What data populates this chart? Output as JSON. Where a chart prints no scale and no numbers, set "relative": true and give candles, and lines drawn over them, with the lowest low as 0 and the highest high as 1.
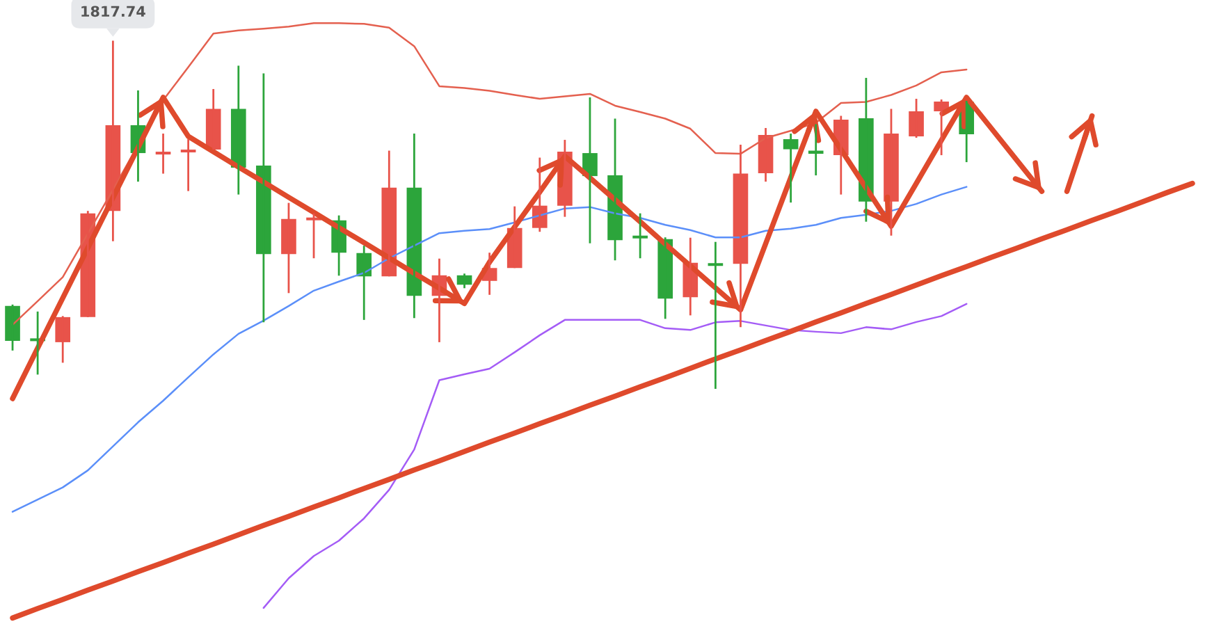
{
  "chart_data": {
    "type": "candlestick",
    "relative": true,
    "categories": [
      null,
      null,
      null,
      null,
      null,
      null,
      null,
      null,
      null,
      null,
      null,
      null,
      null,
      null,
      null,
      null,
      null,
      null,
      null,
      null,
      null,
      null,
      null,
      null,
      null,
      null,
      null,
      null,
      null,
      null,
      null,
      null,
      null,
      null,
      null,
      null,
      null,
      null,
      null,
      null,
      null,
      null,
      null,
      null,
      null,
      null,
      null,
      null
    ],
    "ohlc": [
      [
        0.238,
        0.242,
        0.11,
        0.138
      ],
      [
        0.144,
        0.222,
        0.041,
        0.138
      ],
      [
        0.134,
        0.209,
        0.075,
        0.206
      ],
      [
        0.206,
        0.511,
        0.206,
        0.504
      ],
      [
        0.511,
        1.0,
        0.424,
        0.757
      ],
      [
        0.757,
        0.857,
        0.595,
        0.677
      ],
      [
        0.675,
        0.733,
        0.618,
        0.679
      ],
      [
        0.679,
        0.717,
        0.568,
        0.687
      ],
      [
        0.687,
        0.861,
        0.687,
        0.804
      ],
      [
        0.804,
        0.928,
        0.558,
        0.635
      ],
      [
        0.641,
        0.906,
        0.191,
        0.387
      ],
      [
        0.387,
        0.534,
        0.275,
        0.488
      ],
      [
        0.486,
        0.504,
        0.375,
        0.49
      ],
      [
        0.484,
        0.498,
        0.325,
        0.391
      ],
      [
        0.39,
        0.411,
        0.198,
        0.323
      ],
      [
        0.323,
        0.684,
        0.323,
        0.578
      ],
      [
        0.578,
        0.733,
        0.203,
        0.267
      ],
      [
        0.267,
        0.374,
        0.134,
        0.326
      ],
      [
        0.326,
        0.331,
        0.289,
        0.299
      ],
      [
        0.31,
        0.391,
        0.27,
        0.347
      ],
      [
        0.347,
        0.524,
        0.347,
        0.462
      ],
      [
        0.462,
        0.664,
        0.451,
        0.526
      ],
      [
        0.526,
        0.715,
        0.494,
        0.681
      ],
      [
        0.677,
        0.837,
        0.418,
        0.611
      ],
      [
        0.613,
        0.776,
        0.369,
        0.427
      ],
      [
        0.44,
        0.504,
        0.375,
        0.432
      ],
      [
        0.43,
        0.435,
        0.201,
        0.259
      ],
      [
        0.263,
        0.434,
        0.211,
        0.362
      ],
      [
        0.361,
        0.422,
        0,
        0.353
      ],
      [
        0.359,
        0.701,
        0.177,
        0.618
      ],
      [
        0.619,
        0.749,
        0.595,
        0.729
      ],
      [
        0.717,
        0.733,
        0.535,
        0.688
      ],
      [
        0.684,
        0.76,
        0.613,
        0.675
      ],
      [
        0.671,
        0.784,
        0.558,
        0.773
      ],
      [
        0.777,
        0.893,
        0.48,
        0.538
      ],
      [
        0.538,
        0.804,
        0.44,
        0.733
      ],
      [
        0.725,
        0.833,
        0.721,
        0.797
      ],
      [
        0.797,
        0.831,
        0.671,
        0.825
      ],
      [
        0.824,
        0.827,
        0.651,
        0.731
      ],
      null,
      null,
      null,
      null,
      null,
      null,
      null,
      null,
      null
    ],
    "colors": [
      "#2ca53b",
      "#2ca53b",
      "#e8534a",
      "#e8534a",
      "#e8534a",
      "#2ca53b",
      "#e8534a",
      "#e8534a",
      "#e8534a",
      "#2ca53b",
      "#2ca53b",
      "#e8534a",
      "#e8534a",
      "#2ca53b",
      "#2ca53b",
      "#e8534a",
      "#2ca53b",
      "#e8534a",
      "#2ca53b",
      "#e8534a",
      "#e8534a",
      "#e8534a",
      "#e8534a",
      "#2ca53b",
      "#2ca53b",
      "#2ca53b",
      "#2ca53b",
      "#e8534a",
      "#2ca53b",
      "#e8534a",
      "#e8534a",
      "#2ca53b",
      "#2ca53b",
      "#e8534a",
      "#2ca53b",
      "#e8534a",
      "#e8534a",
      "#e8534a",
      "#2ca53b",
      null,
      null,
      null,
      null,
      null,
      null,
      null,
      null,
      null
    ],
    "series": [
      {
        "type": "line",
        "color": "#e4604f",
        "values": [
          0.184,
          0.252,
          0.321,
          0.446,
          0.572,
          0.7,
          0.829,
          0.924,
          1.02,
          1.029,
          1.034,
          1.04,
          1.05,
          1.05,
          1.048,
          1.037,
          0.984,
          0.869,
          0.864,
          0.856,
          0.844,
          0.833,
          0.84,
          0.847,
          0.813,
          0.795,
          0.776,
          0.747,
          0.677,
          0.675,
          0.72,
          0.741,
          0.764,
          0.821,
          0.824,
          0.844,
          0.871,
          0.909,
          0.917,
          null,
          null,
          null,
          null,
          null,
          null,
          null,
          null,
          null
        ]
      },
      {
        "type": "line",
        "color": "#5b8ff9",
        "values": [
          -0.353,
          -0.318,
          -0.283,
          -0.234,
          -0.165,
          -0.096,
          -0.034,
          0.033,
          0.099,
          0.158,
          0.196,
          0.238,
          0.282,
          0.308,
          0.333,
          0.375,
          0.411,
          0.447,
          0.454,
          0.459,
          0.478,
          0.498,
          0.518,
          0.522,
          0.504,
          0.491,
          0.471,
          0.456,
          0.435,
          0.435,
          0.454,
          0.46,
          0.471,
          0.491,
          0.5,
          0.511,
          0.531,
          0.558,
          0.58,
          null,
          null,
          null,
          null,
          null,
          null,
          null,
          null,
          null
        ]
      },
      {
        "type": "line",
        "color": "#a45cf6",
        "values": [
          null,
          null,
          null,
          null,
          null,
          null,
          null,
          null,
          null,
          null,
          -0.629,
          -0.544,
          -0.48,
          -0.436,
          -0.372,
          -0.29,
          -0.174,
          0.025,
          0.042,
          0.058,
          0.105,
          0.154,
          0.198,
          0.198,
          0.198,
          0.198,
          0.174,
          0.169,
          0.191,
          0.195,
          0.182,
          0.169,
          0.164,
          0.16,
          0.177,
          0.171,
          0.192,
          0.209,
          0.244,
          null,
          null,
          null,
          null,
          null,
          null,
          null,
          null,
          null
        ]
      },
      {
        "type": "line",
        "color": "#df4a2c",
        "values": [
          -0.658,
          -0.631,
          -0.605,
          -0.578,
          -0.552,
          -0.525,
          -0.499,
          -0.472,
          -0.446,
          -0.419,
          -0.392,
          -0.366,
          -0.339,
          -0.313,
          -0.286,
          -0.26,
          -0.233,
          -0.207,
          -0.18,
          -0.153,
          -0.127,
          -0.1,
          -0.074,
          -0.047,
          -0.021,
          0.006,
          0.032,
          0.059,
          0.086,
          0.112,
          0.139,
          0.165,
          0.192,
          0.218,
          0.245,
          0.271,
          0.298,
          0.325,
          0.351,
          0.378,
          0.404,
          0.431,
          0.457,
          0.484,
          0.51,
          0.537,
          0.564,
          0.59
        ]
      },
      {
        "type": "line",
        "color": "#df4a2c",
        "values": [
          -0.028,
          0.117,
          0.261,
          0.405,
          0.549,
          0.693,
          0.837,
          0.725,
          0.681,
          0.637,
          0.594,
          0.55,
          0.507,
          0.463,
          0.42,
          0.376,
          0.332,
          0.289,
          0.245,
          0.364,
          0.465,
          0.565,
          0.668,
          0.606,
          0.543,
          0.48,
          0.416,
          0.353,
          0.29,
          0.227,
          0.417,
          0.607,
          0.797,
          0.687,
          0.577,
          0.467,
          0.59,
          0.714,
          0.837,
          0.747,
          0.657,
          0.567,
          null,
          null,
          null,
          null,
          null,
          null
        ]
      },
      {
        "type": "line",
        "color": "#df4a2c",
        "values": [
          null,
          null,
          null,
          null,
          null,
          null,
          null,
          null,
          null,
          null,
          null,
          null,
          null,
          null,
          null,
          null,
          null,
          null,
          null,
          null,
          null,
          null,
          null,
          null,
          null,
          null,
          null,
          null,
          null,
          null,
          null,
          null,
          null,
          null,
          null,
          null,
          null,
          null,
          null,
          null,
          null,
          null,
          0.567,
          0.784,
          null,
          null,
          null,
          null
        ]
      }
    ],
    "annotations": [
      {
        "text": "1817.74",
        "y": 1
      }
    ]
  }
}
